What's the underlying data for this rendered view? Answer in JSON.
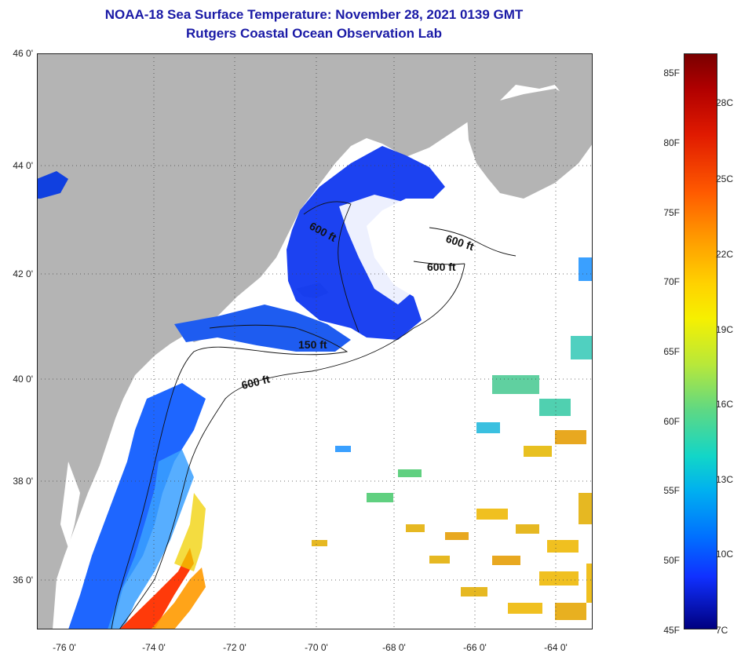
{
  "header": {
    "title": "NOAA-18 Sea Surface Temperature:  November 28, 2021 0139 GMT",
    "subtitle": "Rutgers Coastal Ocean Observation Lab"
  },
  "map": {
    "lat_labels": [
      "46 0'",
      "44 0'",
      "42 0'",
      "40 0'",
      "38 0'",
      "36 0'"
    ],
    "lon_labels": [
      "-76 0'",
      "-74 0'",
      "-72 0'",
      "-70 0'",
      "-68 0'",
      "-66 0'",
      "-64 0'"
    ],
    "contours": {
      "c1": "600 ft",
      "c2": "600 ft",
      "c3": "600 ft",
      "c4": "150 ft",
      "c5": "600 ft"
    },
    "colors": {
      "land": "#b4b4b4",
      "ocean_cloud": "#ffffff",
      "cold_water": "#1030f0",
      "warm_water": "#ff3000"
    }
  },
  "colorbar": {
    "fahrenheit": [
      "85F",
      "80F",
      "75F",
      "70F",
      "65F",
      "60F",
      "55F",
      "50F",
      "45F"
    ],
    "celsius": [
      "28C",
      "25C",
      "22C",
      "19C",
      "16C",
      "13C",
      "10C",
      "7C"
    ],
    "range_f": [
      45,
      86
    ],
    "range_c": [
      7,
      30
    ]
  }
}
